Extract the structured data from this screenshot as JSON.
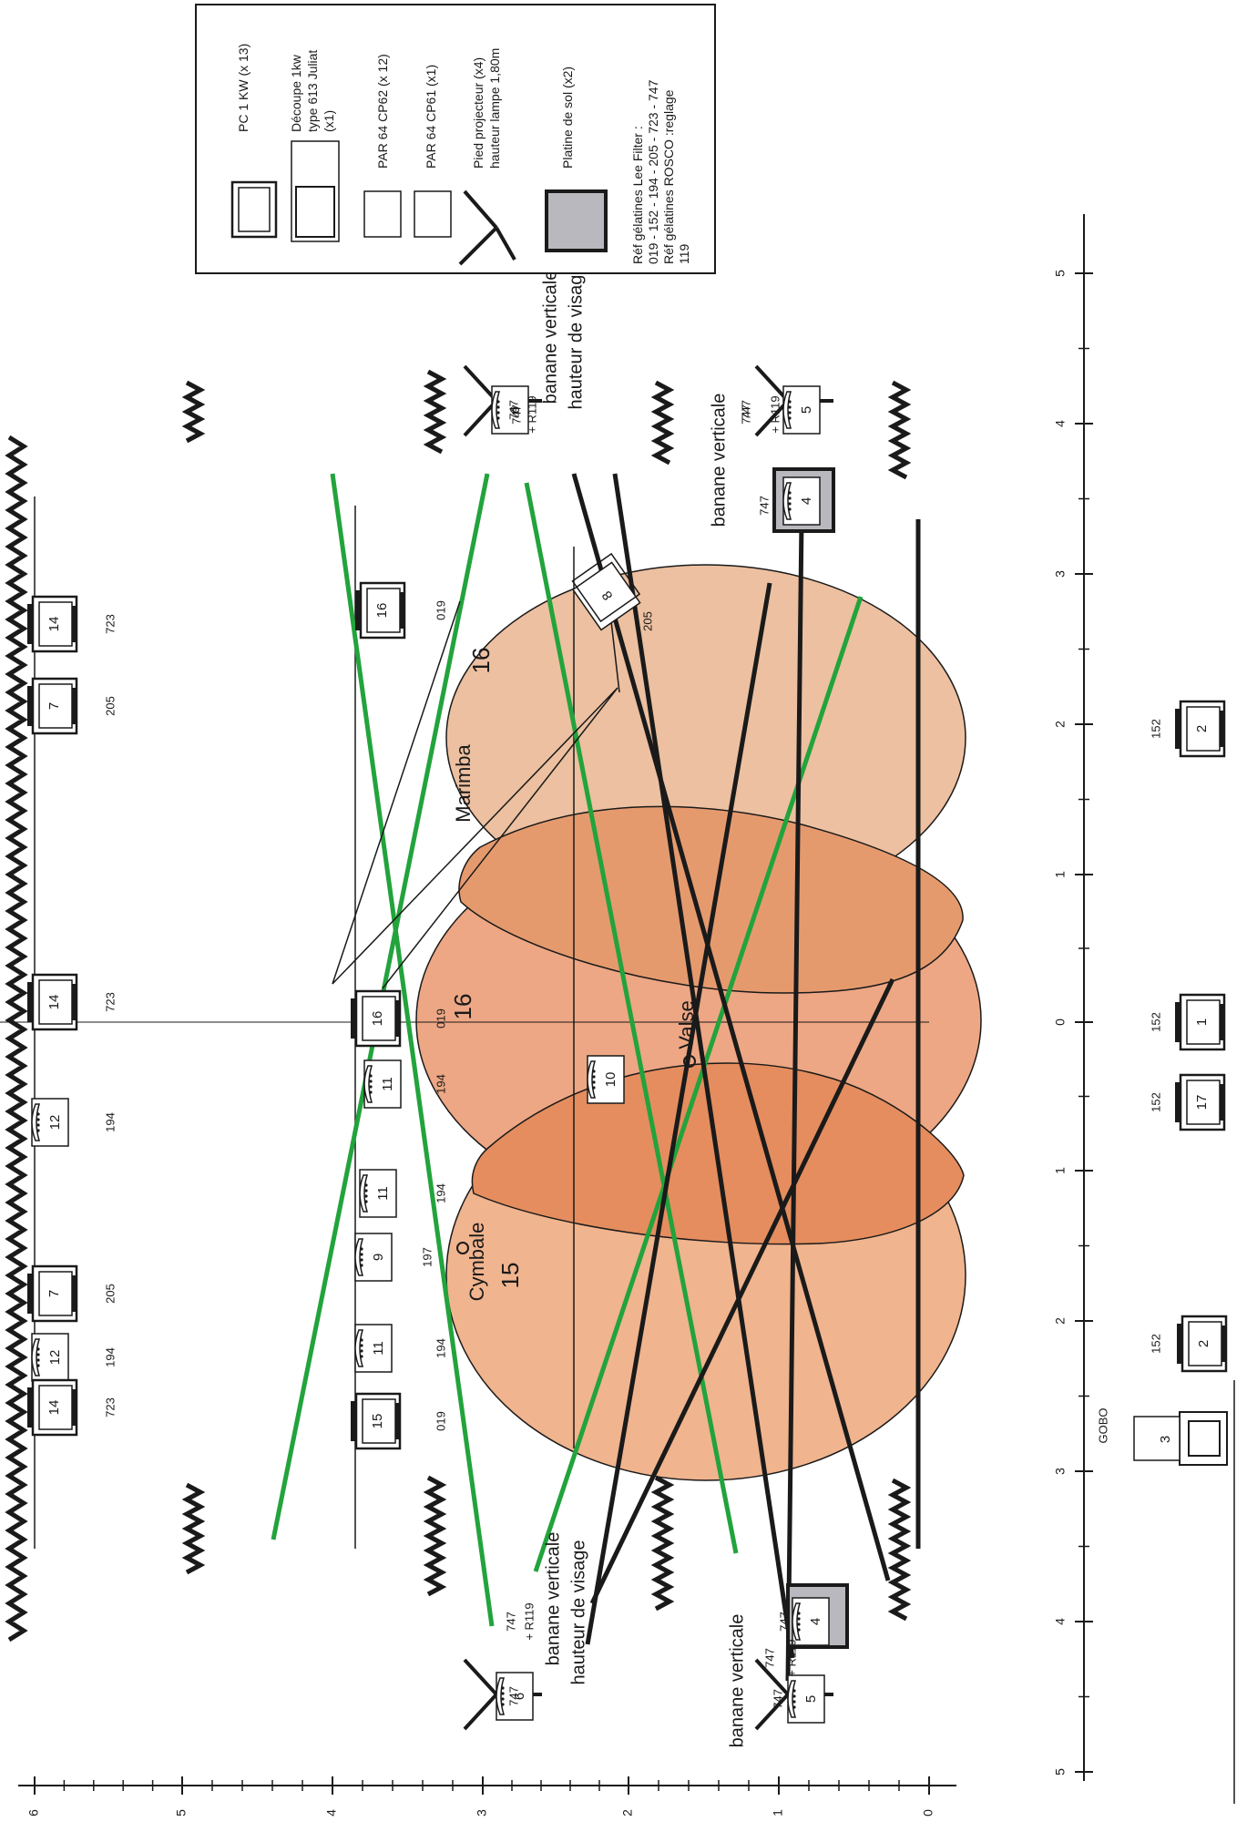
{
  "legend": {
    "pc_label": "PC 1 KW (x 13)",
    "decoupe_lines": [
      "Découpe 1kw",
      "type 613 Juliat",
      "(x1)"
    ],
    "par62_label": "PAR 64 CP62 (x 12)",
    "par61_label": "PAR 64 CP61 (x1)",
    "pied_lines": [
      "Pied projecteur (x4)",
      "hauteur lampe 1,80m"
    ],
    "platine_label": "Platine de sol (x2)",
    "ref_lines": [
      "Réf gélatines Lee Filter :",
      "019 - 152 - 194 - 205 - 723 - 747",
      "Réf gélatines ROSCO :reglage",
      "119"
    ]
  },
  "areas": {
    "marimba": {
      "name": "Marimba",
      "number": "16"
    },
    "valse": {
      "name": "Valse",
      "number": "16"
    },
    "cymbale": {
      "name": "Cymbale",
      "number": "15"
    }
  },
  "annotations": {
    "banane_verticale": "banane verticale",
    "hauteur_visage": "hauteur de visage",
    "gobo": "GOBO",
    "r119": "+ R119"
  },
  "colors": {
    "zone_light": "#ecc0a0",
    "zone_mid": "#e8986e",
    "beam_green": "#22a33c",
    "platine_grey": "#b8b8be"
  },
  "fixtures": [
    {
      "n": "14",
      "gel": "723"
    },
    {
      "n": "7",
      "gel": "205"
    },
    {
      "n": "14",
      "gel": "723"
    },
    {
      "n": "12",
      "gel": "194"
    },
    {
      "n": "7",
      "gel": "205"
    },
    {
      "n": "12",
      "gel": "194"
    },
    {
      "n": "14",
      "gel": "723"
    },
    {
      "n": "16",
      "gel": "019"
    },
    {
      "n": "16",
      "gel": "019"
    },
    {
      "n": "11",
      "gel": "194"
    },
    {
      "n": "11",
      "gel": "194"
    },
    {
      "n": "9",
      "gel": "197"
    },
    {
      "n": "11",
      "gel": "194"
    },
    {
      "n": "15",
      "gel": "019"
    },
    {
      "n": "8",
      "gel": "205"
    },
    {
      "n": "10",
      "gel": ""
    },
    {
      "n": "6",
      "gel": "747"
    },
    {
      "n": "5",
      "gel": "747"
    },
    {
      "n": "4",
      "gel": "747"
    },
    {
      "n": "6",
      "gel": "747"
    },
    {
      "n": "5",
      "gel": "747"
    },
    {
      "n": "4",
      "gel": "747"
    },
    {
      "n": "2",
      "gel": "152"
    },
    {
      "n": "1",
      "gel": "152"
    },
    {
      "n": "17",
      "gel": "152"
    },
    {
      "n": "2",
      "gel": "152"
    },
    {
      "n": "3",
      "gel": ""
    }
  ],
  "scale_left": [
    "6",
    "5",
    "4",
    "3",
    "2",
    "1",
    "0"
  ],
  "scale_right": [
    "5",
    "4",
    "3",
    "2",
    "1",
    "0",
    "1",
    "2",
    "3",
    "4",
    "5"
  ]
}
